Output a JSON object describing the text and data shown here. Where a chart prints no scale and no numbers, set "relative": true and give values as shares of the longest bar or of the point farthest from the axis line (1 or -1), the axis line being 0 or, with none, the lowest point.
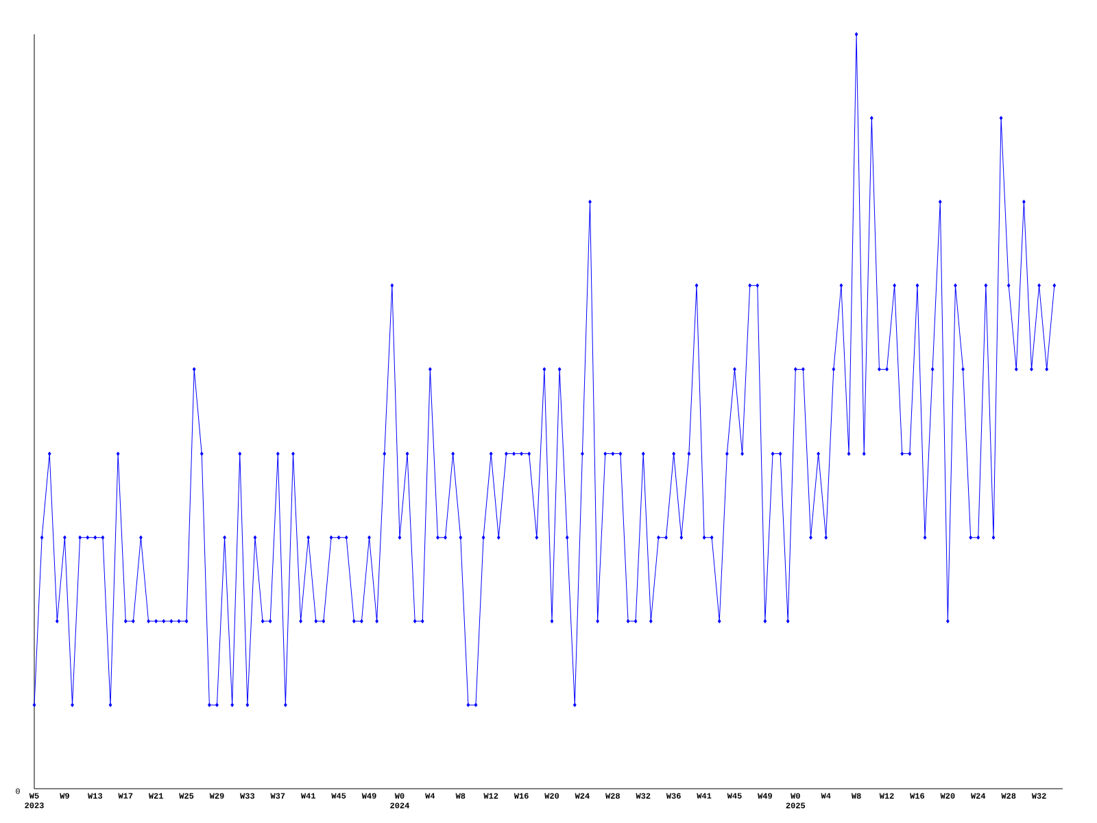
{
  "chart_data": {
    "type": "line",
    "relative": true,
    "color": "#0000ff",
    "marker": "diamond",
    "line_style": "solid",
    "annotations": [
      "0"
    ],
    "categories": [
      "W5 2023",
      null,
      null,
      null,
      "W9",
      null,
      null,
      null,
      "W13",
      null,
      null,
      null,
      "W17",
      null,
      null,
      null,
      "W21",
      null,
      null,
      null,
      "W25",
      null,
      null,
      null,
      "W29",
      null,
      null,
      null,
      "W33",
      null,
      null,
      null,
      "W37",
      null,
      null,
      null,
      "W41",
      null,
      null,
      null,
      "W45",
      null,
      null,
      null,
      "W49",
      null,
      null,
      null,
      "W0 2024",
      null,
      null,
      null,
      "W4",
      null,
      null,
      null,
      "W8",
      null,
      null,
      null,
      "W12",
      null,
      null,
      null,
      "W16",
      null,
      null,
      null,
      "W20",
      null,
      null,
      null,
      "W24",
      null,
      null,
      null,
      "W28",
      null,
      null,
      null,
      "W32",
      null,
      null,
      null,
      "W36",
      null,
      null,
      null,
      "W41",
      null,
      null,
      null,
      "W45",
      null,
      null,
      null,
      "W49",
      null,
      null,
      null,
      "W0 2025",
      null,
      null,
      null,
      "W4",
      null,
      null,
      null,
      "W8",
      null,
      null,
      null,
      "W12",
      null,
      null,
      null,
      "W16",
      null,
      null,
      null,
      "W20",
      null,
      null,
      null,
      "W24",
      null,
      null,
      null,
      "W28",
      null,
      null,
      null,
      "W32",
      null,
      null
    ],
    "values": [
      0.111,
      0.333,
      0.444,
      0.222,
      0.333,
      0.111,
      0.333,
      0.333,
      0.333,
      0.333,
      0.111,
      0.444,
      0.222,
      0.222,
      0.333,
      0.222,
      0.222,
      0.222,
      0.222,
      0.222,
      0.222,
      0.556,
      0.444,
      0.111,
      0.111,
      0.333,
      0.111,
      0.444,
      0.111,
      0.333,
      0.222,
      0.222,
      0.444,
      0.111,
      0.444,
      0.222,
      0.333,
      0.222,
      0.222,
      0.333,
      0.333,
      0.333,
      0.222,
      0.222,
      0.333,
      0.222,
      0.444,
      0.667,
      0.333,
      0.444,
      0.222,
      0.222,
      0.556,
      0.333,
      0.333,
      0.444,
      0.333,
      0.111,
      0.111,
      0.333,
      0.444,
      0.333,
      0.444,
      0.444,
      0.444,
      0.444,
      0.333,
      0.556,
      0.222,
      0.556,
      0.333,
      0.111,
      0.444,
      0.778,
      0.222,
      0.444,
      0.444,
      0.444,
      0.222,
      0.222,
      0.444,
      0.222,
      0.333,
      0.333,
      0.444,
      0.333,
      0.444,
      0.667,
      0.333,
      0.333,
      0.222,
      0.444,
      0.556,
      0.444,
      0.667,
      0.667,
      0.222,
      0.444,
      0.444,
      0.222,
      0.556,
      0.556,
      0.333,
      0.444,
      0.333,
      0.556,
      0.667,
      0.444,
      1,
      0.444,
      0.889,
      0.556,
      0.556,
      0.667,
      0.444,
      0.444,
      0.667,
      0.333,
      0.556,
      0.778,
      0.222,
      0.667,
      0.556,
      0.333,
      0.333,
      0.667,
      0.333,
      0.889,
      0.667,
      0.556,
      0.778,
      0.556,
      0.667,
      0.556,
      0.667
    ]
  }
}
